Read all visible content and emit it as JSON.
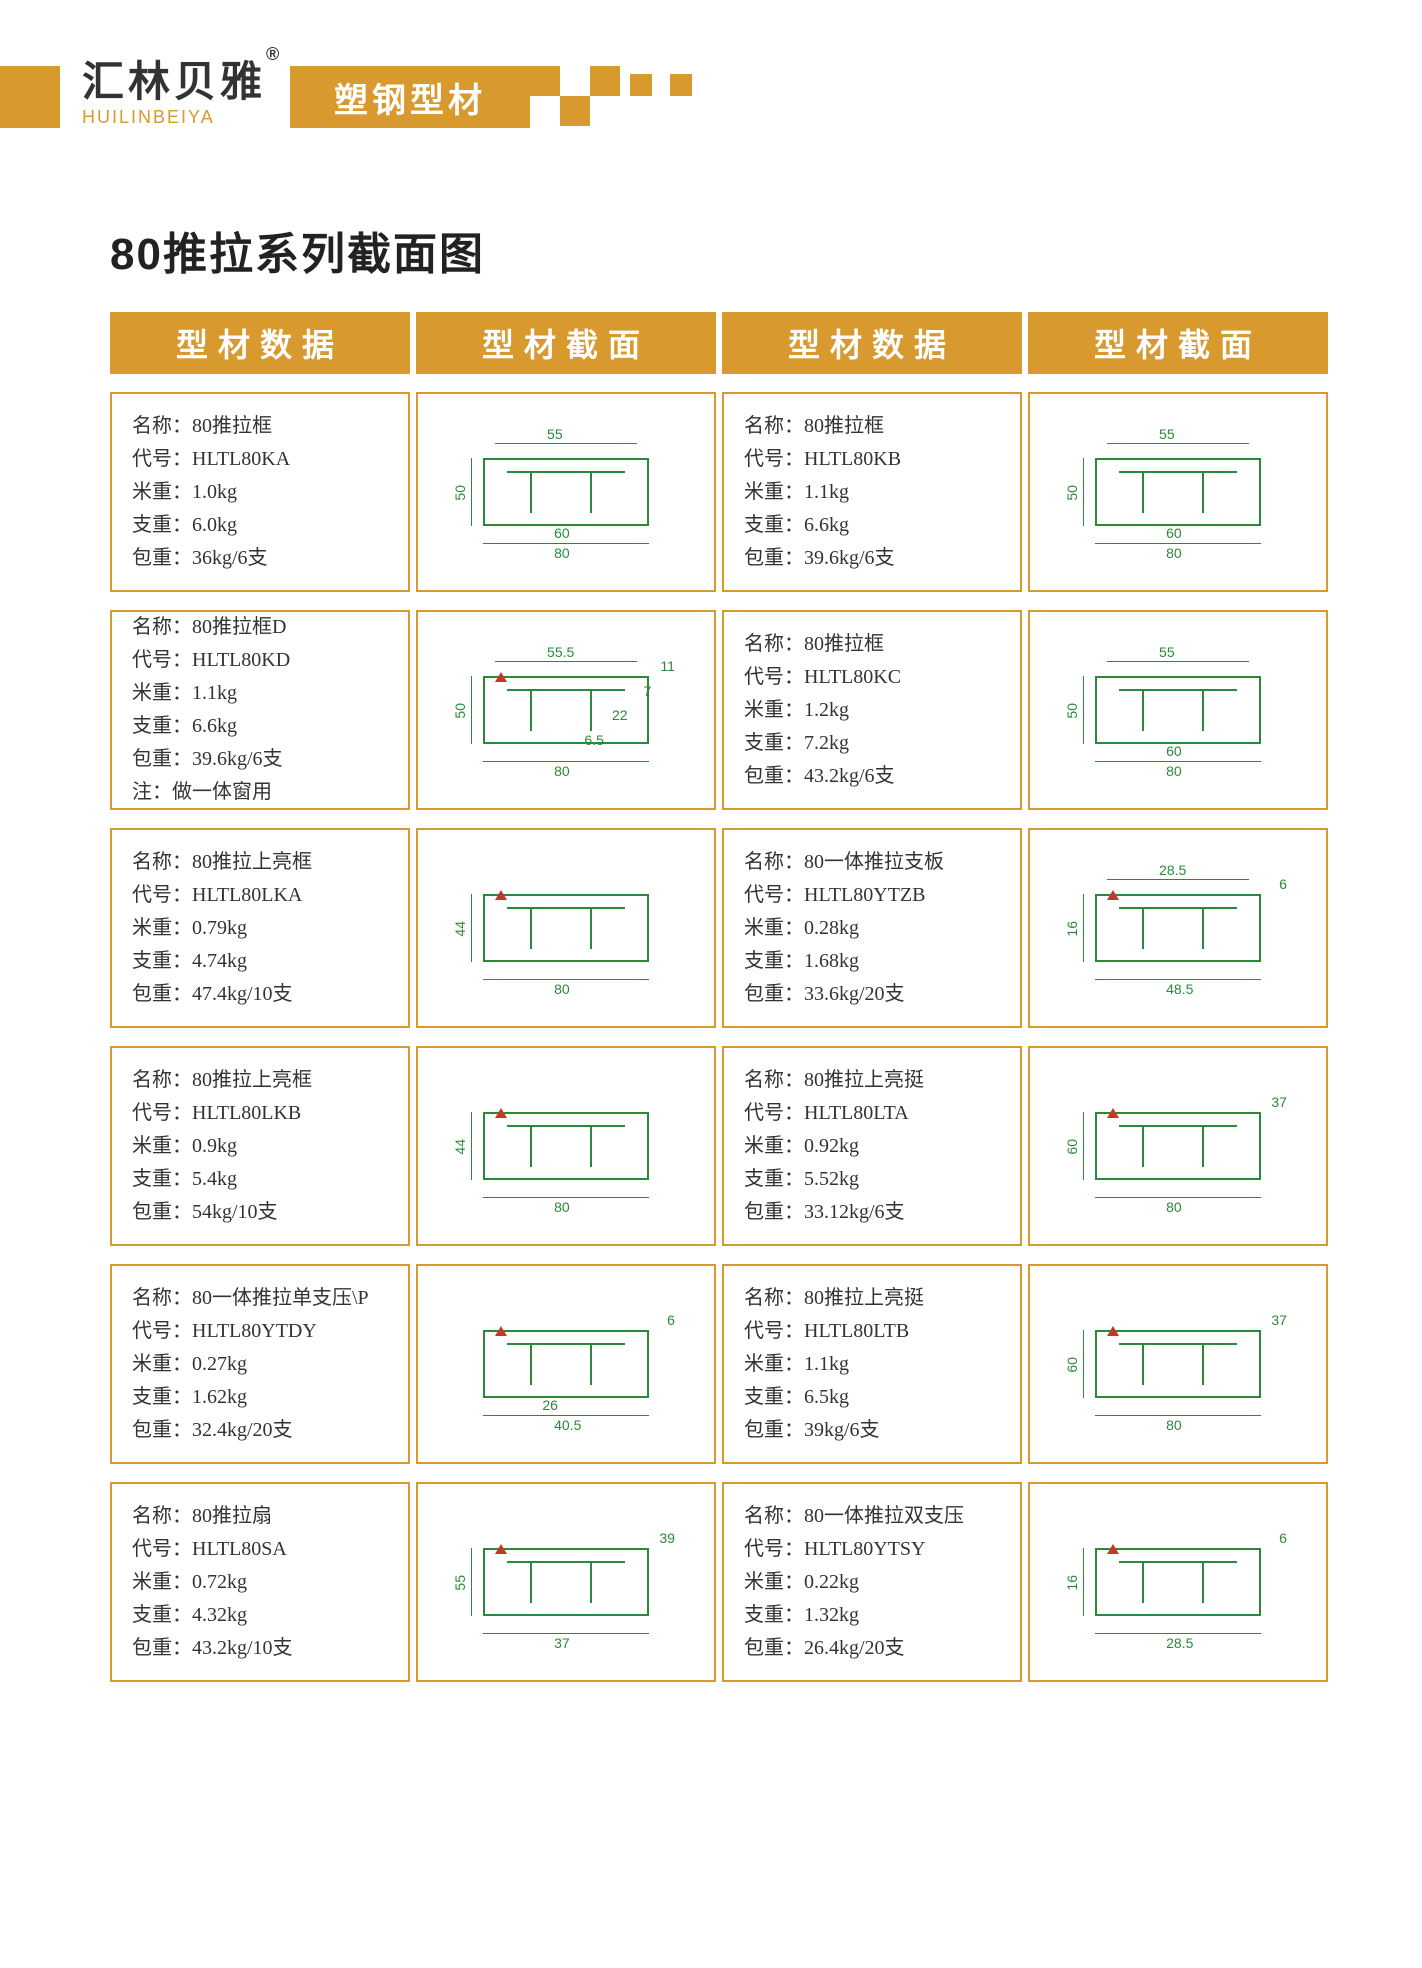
{
  "brand": {
    "cn": "汇林贝雅",
    "reg": "®",
    "en": "HUILINBEIYA",
    "category": "塑钢型材"
  },
  "page_title": "80推拉系列截面图",
  "column_headers": [
    "型材数据",
    "型材截面",
    "型材数据",
    "型材截面"
  ],
  "field_labels": {
    "name": "名称：",
    "code": "代号：",
    "meter_weight": "米重：",
    "piece_weight": "支重：",
    "package_weight": "包重：",
    "note": "注："
  },
  "products": [
    {
      "name": "80推拉框",
      "code": "HLTL80KA",
      "meter_weight": "1.0kg",
      "piece_weight": "6.0kg",
      "package_weight": "36kg/6支",
      "diagram": {
        "width": "80",
        "height": "50",
        "top_dim": "55",
        "mid_dim": "60"
      }
    },
    {
      "name": "80推拉框",
      "code": "HLTL80KB",
      "meter_weight": "1.1kg",
      "piece_weight": "6.6kg",
      "package_weight": "39.6kg/6支",
      "diagram": {
        "width": "80",
        "height": "50",
        "top_dim": "55",
        "mid_dim": "60"
      }
    },
    {
      "name": "80推拉框D",
      "code": "HLTL80KD",
      "meter_weight": "1.1kg",
      "piece_weight": "6.6kg",
      "package_weight": "39.6kg/6支",
      "note": "做一体窗用",
      "diagram": {
        "width": "80",
        "height": "50",
        "top_dim": "55.5",
        "d1": "11",
        "d2": "7",
        "d3": "22",
        "d4": "6.5"
      }
    },
    {
      "name": "80推拉框",
      "code": "HLTL80KC",
      "meter_weight": "1.2kg",
      "piece_weight": "7.2kg",
      "package_weight": "43.2kg/6支",
      "diagram": {
        "width": "80",
        "height": "50",
        "top_dim": "55",
        "mid_dim": "60"
      }
    },
    {
      "name": "80推拉上亮框",
      "code": "HLTL80LKA",
      "meter_weight": "0.79kg",
      "piece_weight": "4.74kg",
      "package_weight": "47.4kg/10支",
      "diagram": {
        "width": "80",
        "height": "44"
      }
    },
    {
      "name": "80一体推拉支板",
      "code": "HLTL80YTZB",
      "meter_weight": "0.28kg",
      "piece_weight": "1.68kg",
      "package_weight": "33.6kg/20支",
      "diagram": {
        "width": "48.5",
        "height": "16",
        "top_dim": "28.5",
        "d1": "6"
      }
    },
    {
      "name": "80推拉上亮框",
      "code": "HLTL80LKB",
      "meter_weight": "0.9kg",
      "piece_weight": "5.4kg",
      "package_weight": "54kg/10支",
      "diagram": {
        "width": "80",
        "height": "44"
      }
    },
    {
      "name": "80推拉上亮挺",
      "code": "HLTL80LTA",
      "meter_weight": "0.92kg",
      "piece_weight": "5.52kg",
      "package_weight": "33.12kg/6支",
      "diagram": {
        "width": "80",
        "height": "60",
        "d1": "37"
      }
    },
    {
      "name": "80一体推拉单支压\\P",
      "code": "HLTL80YTDY",
      "meter_weight": "0.27kg",
      "piece_weight": "1.62kg",
      "package_weight": "32.4kg/20支",
      "diagram": {
        "width": "40.5",
        "bottom_dim": "26",
        "d1": "6"
      }
    },
    {
      "name": "80推拉上亮挺",
      "code": "HLTL80LTB",
      "meter_weight": "1.1kg",
      "piece_weight": "6.5kg",
      "package_weight": "39kg/6支",
      "diagram": {
        "width": "80",
        "height": "60",
        "d1": "37"
      }
    },
    {
      "name": "80推拉扇",
      "code": "HLTL80SA",
      "meter_weight": "0.72kg",
      "piece_weight": "4.32kg",
      "package_weight": "43.2kg/10支",
      "diagram": {
        "width": "37",
        "height": "55",
        "d1": "39"
      }
    },
    {
      "name": "80一体推拉双支压",
      "code": "HLTL80YTSY",
      "meter_weight": "0.22kg",
      "piece_weight": "1.32kg",
      "package_weight": "26.4kg/20支",
      "diagram": {
        "width": "28.5",
        "height": "16",
        "d1": "6"
      }
    }
  ],
  "colors": {
    "accent": "#d89a2e",
    "diagram_line": "#2a8a3a",
    "diagram_red": "#c0392b",
    "text": "#333333",
    "background": "#ffffff"
  }
}
